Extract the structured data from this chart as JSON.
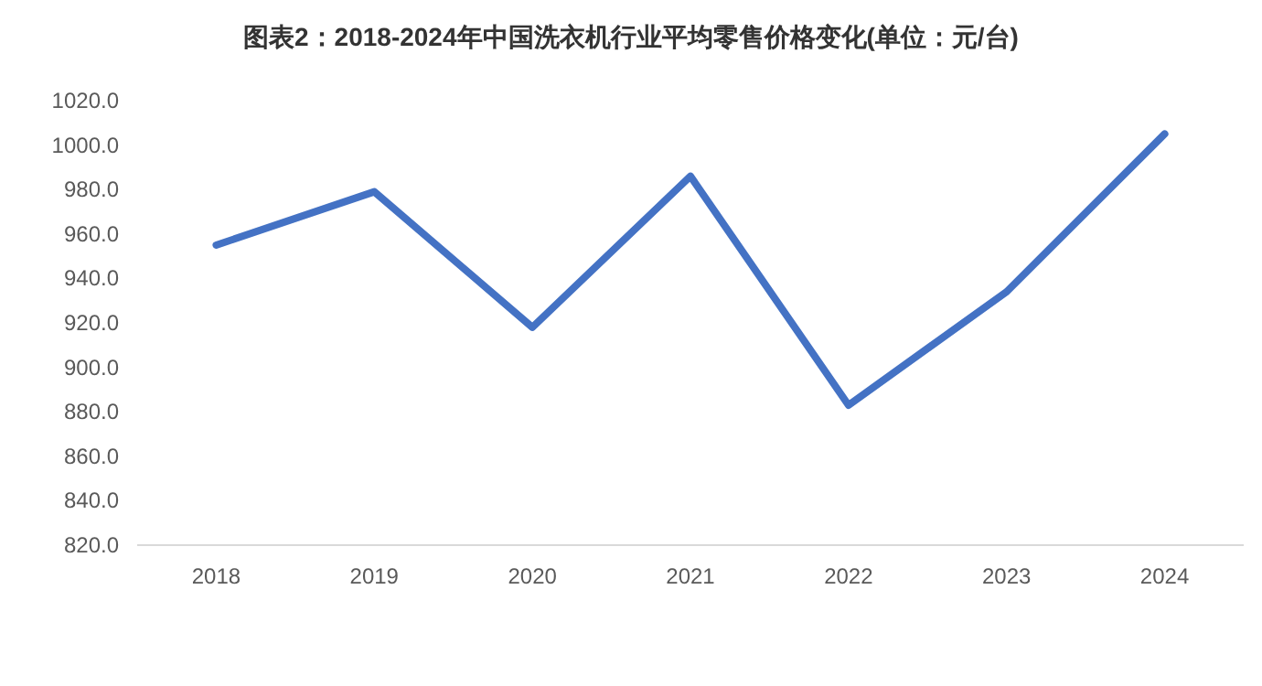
{
  "chart_data": {
    "type": "line",
    "title": "图表2：2018-2024年中国洗衣机行业平均零售价格变化(单位：元/台)",
    "categories": [
      "2018",
      "2019",
      "2020",
      "2021",
      "2022",
      "2023",
      "2024"
    ],
    "series": [
      {
        "color": "#4472c4",
        "values": [
          955,
          979,
          918,
          986,
          883,
          934,
          1005
        ]
      }
    ],
    "ylim": [
      820,
      1020
    ],
    "yticks": [
      {
        "value": 820,
        "label": "820.0"
      },
      {
        "value": 840,
        "label": "840.0"
      },
      {
        "value": 860,
        "label": "860.0"
      },
      {
        "value": 880,
        "label": "880.0"
      },
      {
        "value": 900,
        "label": "900.0"
      },
      {
        "value": 920,
        "label": "920.0"
      },
      {
        "value": 940,
        "label": "940.0"
      },
      {
        "value": 960,
        "label": "960.0"
      },
      {
        "value": 980,
        "label": "980.0"
      },
      {
        "value": 1000,
        "label": "1000.0"
      },
      {
        "value": 1020,
        "label": "1020.0"
      }
    ],
    "grid": false,
    "marker": "none",
    "line_style": "solid"
  }
}
